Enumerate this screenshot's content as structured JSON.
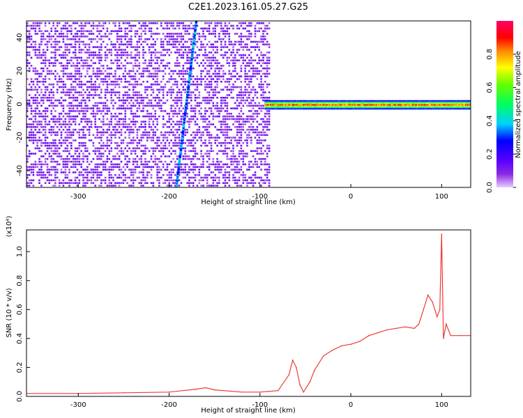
{
  "title": "C2E1.2023.161.05.27.G25",
  "colors": {
    "snr_line": "#ee3a33",
    "heatmap_background": "#ffffff"
  },
  "chart_data": [
    {
      "type": "heatmap",
      "xlabel": "Height of straight line (km)",
      "ylabel": "Frequency (Hz)",
      "xlim": [
        -357,
        132
      ],
      "ylim": [
        -50,
        50
      ],
      "xticks": [
        -300,
        -200,
        -100,
        0,
        100
      ],
      "yticks": [
        -40,
        -20,
        0,
        20,
        40
      ],
      "colorbar": {
        "label": "Normalized spectral amplitude",
        "range": [
          0,
          1
        ],
        "ticks": [
          "0.0",
          "0.2",
          "0.4",
          "0.6",
          "0.8"
        ],
        "colormap": "rainbow (purple to red)"
      },
      "features": [
        {
          "name": "broadband noise",
          "x_range": [
            -357,
            -90
          ],
          "y_range": [
            -50,
            50
          ],
          "amplitude_range": [
            0.05,
            0.15
          ]
        },
        {
          "name": "diagonal streak",
          "from": [
            -192,
            -50
          ],
          "to": [
            -170,
            50
          ],
          "amplitude_range": [
            0.2,
            0.45
          ]
        },
        {
          "name": "narrowband line at 0 Hz",
          "x_range": [
            -95,
            132
          ],
          "y": 0,
          "amplitude_range": [
            0.4,
            0.95
          ]
        }
      ]
    },
    {
      "type": "line",
      "xlabel": "Height of straight line (km)",
      "ylabel": "SNR (10 * v/v)",
      "scale_label": "(x10⁴)",
      "xlim": [
        -357,
        132
      ],
      "ylim": [
        0,
        1.15
      ],
      "xticks": [
        -300,
        -200,
        -100,
        0,
        100
      ],
      "yticks": [
        "0.0",
        "0.2",
        "0.4",
        "0.6",
        "0.8",
        "1.0"
      ],
      "series": [
        {
          "x": [
            -357,
            -300,
            -250,
            -200,
            -170,
            -160,
            -150,
            -120,
            -100,
            -80,
            -68,
            -64,
            -60,
            -56,
            -52,
            -45,
            -40,
            -30,
            -20,
            -10,
            0,
            10,
            20,
            30,
            40,
            50,
            60,
            70,
            75,
            80,
            85,
            90,
            95,
            98,
            100,
            102,
            105,
            110,
            120,
            132
          ],
          "y": [
            0.02,
            0.02,
            0.025,
            0.03,
            0.05,
            0.06,
            0.045,
            0.03,
            0.03,
            0.04,
            0.15,
            0.25,
            0.2,
            0.08,
            0.03,
            0.1,
            0.18,
            0.28,
            0.32,
            0.35,
            0.36,
            0.38,
            0.42,
            0.44,
            0.46,
            0.47,
            0.48,
            0.47,
            0.5,
            0.6,
            0.7,
            0.65,
            0.55,
            0.6,
            1.12,
            0.4,
            0.5,
            0.42,
            0.42,
            0.42
          ]
        }
      ]
    }
  ]
}
